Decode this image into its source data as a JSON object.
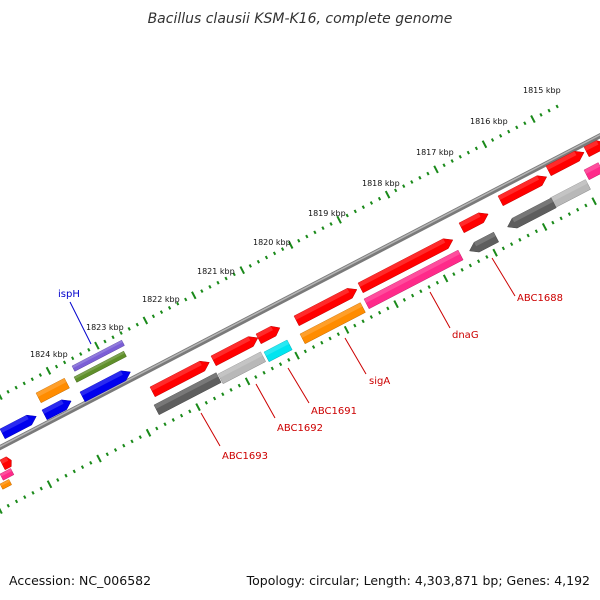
{
  "title": "Bacillus clausii KSM-K16, complete genome",
  "accession": "Accession: NC_006582",
  "topology": "Topology: circular; Length: 4,303,871 bp; Genes: 4,192",
  "colors": {
    "backbone": "#808080",
    "tick": "#1a8a1a",
    "label_red": "#cc0000",
    "label_blue": "#0000cc",
    "red": "#ff0000",
    "gray_light": "#b8b8b8",
    "gray_dark": "#5e5e5e",
    "pink": "#ff2a8a",
    "orange": "#ff8c00",
    "cyan": "#00e5f0",
    "blue": "#0000ee",
    "purple": "#7b5fd6",
    "olive": "#5f8f2a"
  },
  "scale_labels": [
    "1815 kbp",
    "1816 kbp",
    "1817 kbp",
    "1818 kbp",
    "1819 kbp",
    "1820 kbp",
    "1821 kbp",
    "1822 kbp",
    "1823 kbp",
    "1824 kbp"
  ],
  "gene_labels": [
    {
      "name": "ispH",
      "color": "label_blue"
    },
    {
      "name": "ABC1688",
      "color": "label_red"
    },
    {
      "name": "dnaG",
      "color": "label_red"
    },
    {
      "name": "sigA",
      "color": "label_red"
    },
    {
      "name": "ABC1691",
      "color": "label_red"
    },
    {
      "name": "ABC1692",
      "color": "label_red"
    },
    {
      "name": "ABC1693",
      "color": "label_red"
    }
  ],
  "features": [
    {
      "id": "f1",
      "color": "red"
    },
    {
      "id": "f2",
      "color": "red"
    },
    {
      "id": "f3",
      "color": "red"
    },
    {
      "id": "f4",
      "color": "red"
    },
    {
      "id": "f5",
      "color": "red"
    },
    {
      "id": "f6",
      "color": "red"
    },
    {
      "id": "f7",
      "color": "red"
    },
    {
      "id": "f8",
      "color": "red"
    },
    {
      "id": "f9",
      "color": "red"
    },
    {
      "id": "f10",
      "color": "gray_light"
    },
    {
      "id": "f11",
      "color": "gray_dark"
    },
    {
      "id": "f12",
      "color": "gray_dark"
    },
    {
      "id": "f13",
      "color": "pink"
    },
    {
      "id": "f14",
      "color": "orange"
    },
    {
      "id": "f15",
      "color": "cyan"
    },
    {
      "id": "f16",
      "color": "gray_light"
    },
    {
      "id": "f17",
      "color": "gray_dark"
    },
    {
      "id": "f18",
      "color": "orange"
    },
    {
      "id": "f19",
      "color": "purple"
    },
    {
      "id": "f20",
      "color": "olive"
    },
    {
      "id": "f21",
      "color": "blue"
    },
    {
      "id": "f22",
      "color": "blue"
    },
    {
      "id": "f23",
      "color": "blue"
    },
    {
      "id": "f24",
      "color": "red"
    },
    {
      "id": "f25",
      "color": "pink"
    },
    {
      "id": "f26",
      "color": "orange"
    },
    {
      "id": "f27",
      "color": "pink"
    }
  ]
}
